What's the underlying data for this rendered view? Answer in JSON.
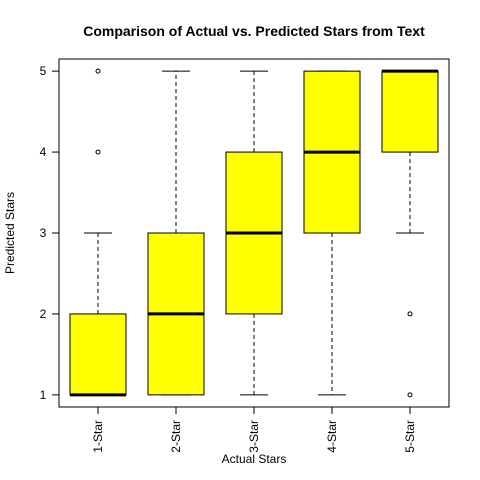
{
  "chart_data": {
    "type": "boxplot",
    "title": "Comparison of Actual vs. Predicted Stars from Text",
    "xlabel": "Actual Stars",
    "ylabel": "Predicted Stars",
    "categories": [
      "1-Star",
      "2-Star",
      "3-Star",
      "4-Star",
      "5-Star"
    ],
    "ylim": [
      0.85,
      5.15
    ],
    "yticks": [
      1,
      2,
      3,
      4,
      5
    ],
    "box_fill": "#ffff00",
    "grid": false,
    "boxes": [
      {
        "whisker_low": 1,
        "q1": 1,
        "median": 1,
        "q3": 2,
        "whisker_high": 3,
        "outliers": [
          4,
          5
        ]
      },
      {
        "whisker_low": 1,
        "q1": 1,
        "median": 2,
        "q3": 3,
        "whisker_high": 5,
        "outliers": []
      },
      {
        "whisker_low": 1,
        "q1": 2,
        "median": 3,
        "q3": 4,
        "whisker_high": 5,
        "outliers": []
      },
      {
        "whisker_low": 1,
        "q1": 3,
        "median": 4,
        "q3": 5,
        "whisker_high": 5,
        "outliers": []
      },
      {
        "whisker_low": 3,
        "q1": 4,
        "median": 5,
        "q3": 5,
        "whisker_high": 5,
        "outliers": [
          1,
          2
        ]
      }
    ]
  }
}
